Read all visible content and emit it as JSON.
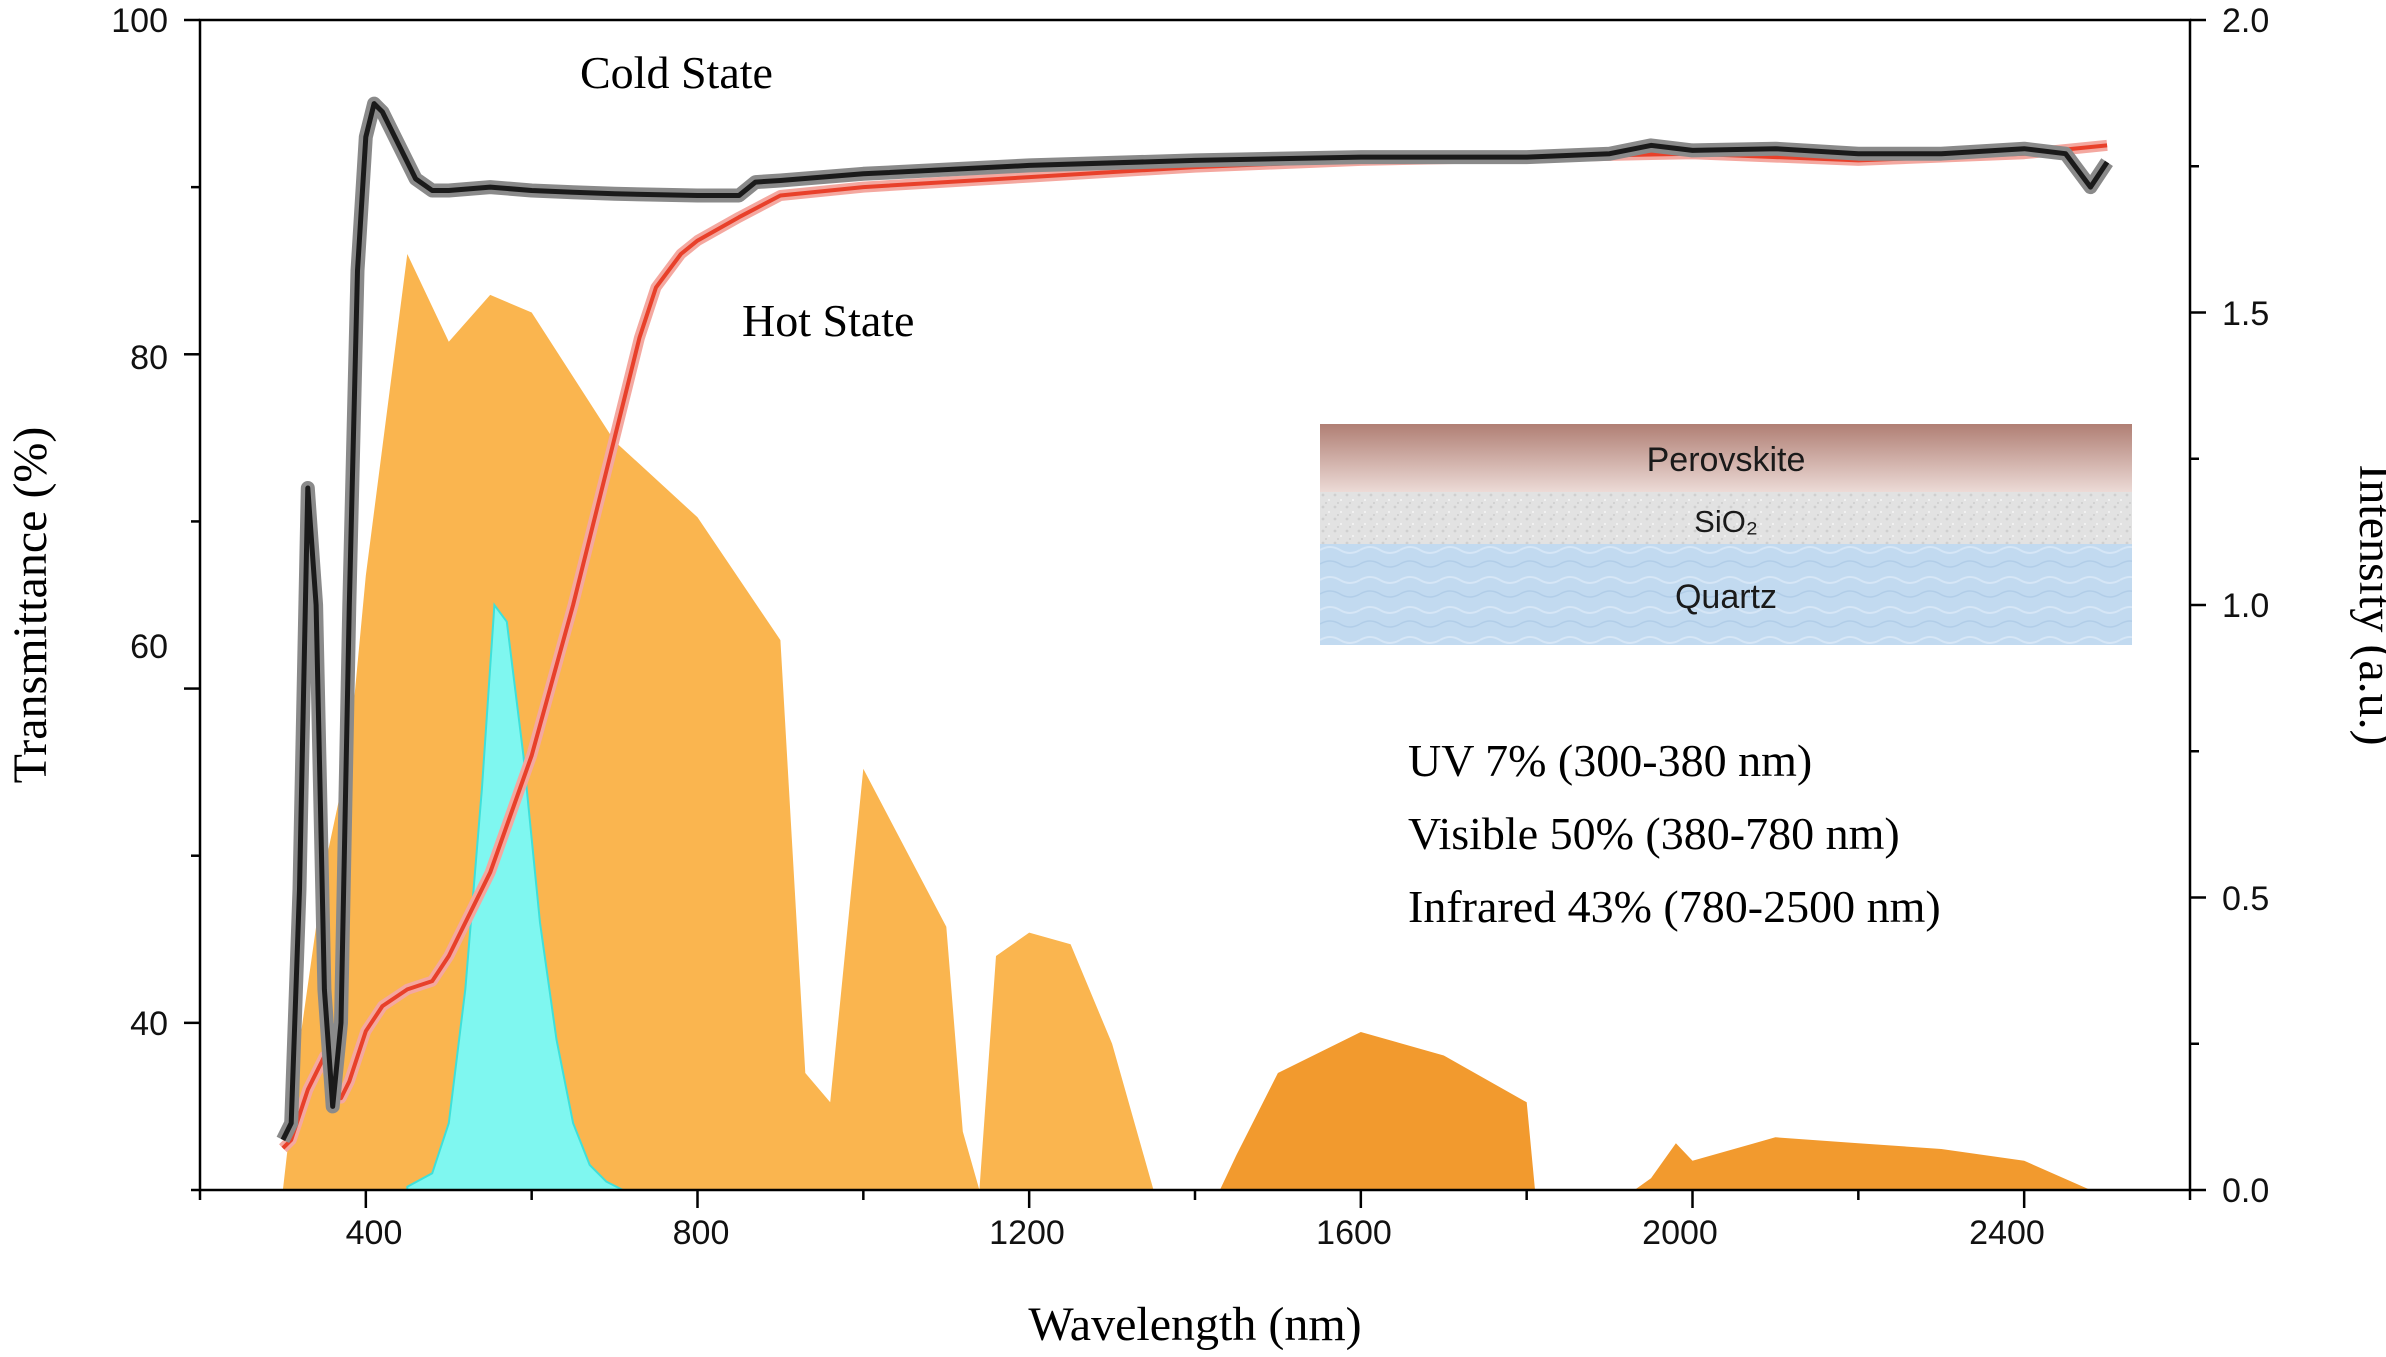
{
  "chart_data": {
    "type": "line",
    "xlabel": "Wavelength (nm)",
    "ylabel": "Transmittance  (%)",
    "y2label": "Intensity (a.u.)",
    "xlim": [
      200,
      2600
    ],
    "ylim": [
      30,
      100
    ],
    "y2lim": [
      0,
      2.0
    ],
    "xticks": [
      "400",
      "800",
      "1200",
      "1600",
      "2000",
      "2400"
    ],
    "yticks": [
      "40",
      "60",
      "80",
      "100"
    ],
    "y2ticks": [
      "0.0",
      "0.5",
      "1.0",
      "1.5",
      "2.0"
    ],
    "annotations": {
      "cold": "Cold State",
      "hot": "Hot State",
      "uv": "UV 7%  (300-380 nm)",
      "visible": "Visible 50%  (380-780 nm)",
      "infrared": "Infrared 43%  (780-2500 nm)"
    },
    "inset_layers": [
      "Perovskite",
      "SiO₂",
      "Quartz"
    ],
    "colors": {
      "cold": "#1a1a1a",
      "hot": "#e8402a",
      "solar_visible": "#fab54f",
      "solar_ir": "#f29a2e",
      "photopic": "#7ff7f0",
      "perovskite": "#b88a80",
      "sio2": "#dcdcdc",
      "quartz": "#bcd6ee"
    },
    "series": [
      {
        "axis": "left",
        "x": [
          300,
          310,
          320,
          330,
          340,
          350,
          360,
          370,
          380,
          390,
          400,
          410,
          420,
          440,
          460,
          480,
          500,
          550,
          600,
          650,
          700,
          800,
          850,
          870,
          900,
          1000,
          1200,
          1400,
          1600,
          1800,
          1900,
          1950,
          2000,
          2100,
          2200,
          2300,
          2400,
          2450,
          2480,
          2500
        ],
        "y": [
          33,
          34,
          48,
          72,
          65,
          42,
          35,
          40,
          65,
          85,
          93,
          95,
          94.5,
          92.5,
          90.5,
          89.8,
          89.8,
          90,
          89.8,
          89.7,
          89.6,
          89.5,
          89.5,
          90.3,
          90.4,
          90.8,
          91.3,
          91.6,
          91.8,
          91.8,
          92,
          92.5,
          92.2,
          92.3,
          92,
          92,
          92.3,
          92,
          90,
          91.5
        ]
      },
      {
        "axis": "left",
        "x": [
          300,
          310,
          330,
          350,
          360,
          370,
          380,
          400,
          420,
          450,
          480,
          500,
          550,
          600,
          650,
          700,
          730,
          750,
          780,
          800,
          850,
          900,
          1000,
          1200,
          1400,
          1600,
          1800,
          2000,
          2200,
          2400,
          2500
        ],
        "y": [
          32.5,
          33,
          36,
          38,
          36,
          35.5,
          36.5,
          39.5,
          41,
          42,
          42.5,
          44,
          49,
          56,
          65,
          75,
          81,
          84,
          86,
          86.8,
          88.2,
          89.5,
          90,
          90.6,
          91.2,
          91.6,
          91.8,
          92,
          91.6,
          92,
          92.5
        ]
      },
      {
        "axis": "right",
        "x": [
          300,
          320,
          350,
          380,
          400,
          450,
          500,
          550,
          600,
          700,
          800,
          900,
          930,
          960,
          1000,
          1100,
          1120,
          1140,
          1160,
          1200,
          1250,
          1300,
          1350,
          1370,
          1430,
          1450,
          1500,
          1600,
          1700,
          1800,
          1810,
          1930,
          1950,
          1980,
          2000,
          2100,
          2200,
          2300,
          2400,
          2480,
          2500
        ],
        "y": [
          0.0,
          0.25,
          0.55,
          0.75,
          1.05,
          1.6,
          1.45,
          1.53,
          1.5,
          1.28,
          1.15,
          0.94,
          0.2,
          0.15,
          0.72,
          0.45,
          0.1,
          0.0,
          0.4,
          0.44,
          0.42,
          0.25,
          0.0,
          0.0,
          0.0,
          0.06,
          0.2,
          0.27,
          0.23,
          0.15,
          0.0,
          0.0,
          0.02,
          0.08,
          0.05,
          0.09,
          0.08,
          0.07,
          0.05,
          0.0,
          0.0
        ]
      },
      {
        "axis": "left",
        "x": [
          450,
          480,
          500,
          520,
          540,
          555,
          570,
          590,
          610,
          630,
          650,
          670,
          690,
          710
        ],
        "y": [
          30.2,
          31,
          34,
          42,
          54,
          65,
          64,
          56,
          46,
          39,
          34,
          31.5,
          30.5,
          30
        ]
      }
    ]
  }
}
